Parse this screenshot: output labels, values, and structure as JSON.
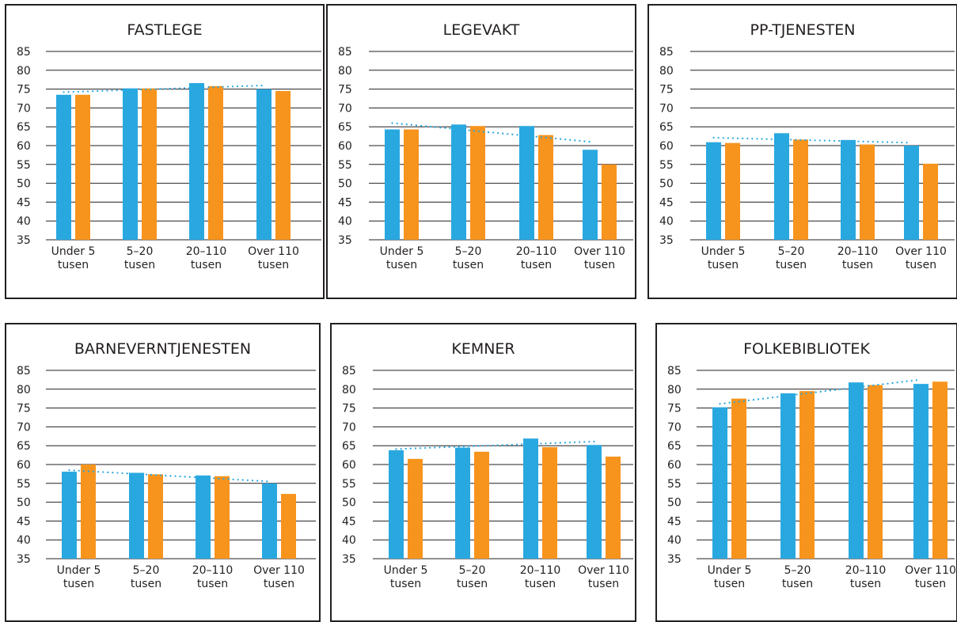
{
  "colors": {
    "series_blue": "#29a8e0",
    "series_orange": "#f7941d",
    "trend": "#29a8e0",
    "grid": "#231f20",
    "text": "#231f20"
  },
  "chart_data": [
    {
      "type": "bar",
      "title": "FASTLEGE",
      "categories": [
        "Under 5 tusen",
        "5–20 tusen",
        "20–110 tusen",
        "Over 110 tusen"
      ],
      "series": [
        {
          "color": "#29a8e0",
          "values": [
            73.5,
            75.2,
            76.6,
            75.0
          ]
        },
        {
          "color": "#f7941d",
          "values": [
            73.5,
            75.2,
            75.8,
            74.5
          ]
        }
      ],
      "trendline": {
        "style": "dotted",
        "color": "#29a8e0",
        "series_index": 0
      },
      "yticks": [
        35,
        40,
        45,
        50,
        55,
        60,
        65,
        70,
        75,
        80,
        85
      ],
      "ylim": [
        35,
        85
      ],
      "grid": true
    },
    {
      "type": "bar",
      "title": "LEGEVAKT",
      "categories": [
        "Under 5 tusen",
        "5–20 tusen",
        "20–110 tusen",
        "Over 110 tusen"
      ],
      "series": [
        {
          "color": "#29a8e0",
          "values": [
            64.3,
            65.6,
            65.2,
            58.9
          ]
        },
        {
          "color": "#f7941d",
          "values": [
            64.3,
            65.2,
            62.8,
            55.0
          ]
        }
      ],
      "trendline": {
        "style": "dotted",
        "color": "#29a8e0",
        "series_index": 0
      },
      "yticks": [
        35,
        40,
        45,
        50,
        55,
        60,
        65,
        70,
        75,
        80,
        85
      ],
      "ylim": [
        35,
        85
      ],
      "grid": true
    },
    {
      "type": "bar",
      "title": "PP-TJENESTEN",
      "categories": [
        "Under 5 tusen",
        "5–20 tusen",
        "20–110 tusen",
        "Over 110 tusen"
      ],
      "series": [
        {
          "color": "#29a8e0",
          "values": [
            60.9,
            63.3,
            61.5,
            60.0
          ]
        },
        {
          "color": "#f7941d",
          "values": [
            60.7,
            61.6,
            60.3,
            55.2
          ]
        }
      ],
      "trendline": {
        "style": "dotted",
        "color": "#29a8e0",
        "series_index": 0
      },
      "yticks": [
        35,
        40,
        45,
        50,
        55,
        60,
        65,
        70,
        75,
        80,
        85
      ],
      "ylim": [
        35,
        85
      ],
      "grid": true
    },
    {
      "type": "bar",
      "title": "BARNEVERNTJENESTEN",
      "categories": [
        "Under 5 tusen",
        "5–20 tusen",
        "20–110 tusen",
        "Over 110 tusen"
      ],
      "series": [
        {
          "color": "#29a8e0",
          "values": [
            58.1,
            57.8,
            57.1,
            55.0
          ]
        },
        {
          "color": "#f7941d",
          "values": [
            60.0,
            57.4,
            56.9,
            52.2
          ]
        }
      ],
      "trendline": {
        "style": "dotted",
        "color": "#29a8e0",
        "series_index": 0
      },
      "yticks": [
        35,
        40,
        45,
        50,
        55,
        60,
        65,
        70,
        75,
        80,
        85
      ],
      "ylim": [
        35,
        85
      ],
      "grid": true
    },
    {
      "type": "bar",
      "title": "KEMNER",
      "categories": [
        "Under 5 tusen",
        "5–20 tusen",
        "20–110 tusen",
        "Over 110 tusen"
      ],
      "series": [
        {
          "color": "#29a8e0",
          "values": [
            63.8,
            64.5,
            66.9,
            65.2
          ]
        },
        {
          "color": "#f7941d",
          "values": [
            61.5,
            63.4,
            64.6,
            62.1
          ]
        }
      ],
      "trendline": {
        "style": "dotted",
        "color": "#29a8e0",
        "series_index": 0
      },
      "yticks": [
        35,
        40,
        45,
        50,
        55,
        60,
        65,
        70,
        75,
        80,
        85
      ],
      "ylim": [
        35,
        85
      ],
      "grid": true
    },
    {
      "type": "bar",
      "title": "FOLKEBIBLIOTEK",
      "categories": [
        "Under 5 tusen",
        "5–20 tusen",
        "20–110 tusen",
        "Over 110 tusen"
      ],
      "series": [
        {
          "color": "#29a8e0",
          "values": [
            75.2,
            78.9,
            81.8,
            81.4
          ]
        },
        {
          "color": "#f7941d",
          "values": [
            77.5,
            79.5,
            81.1,
            82.0
          ]
        }
      ],
      "trendline": {
        "style": "dotted",
        "color": "#29a8e0",
        "series_index": 0
      },
      "yticks": [
        35,
        40,
        45,
        50,
        55,
        60,
        65,
        70,
        75,
        80,
        85
      ],
      "ylim": [
        35,
        85
      ],
      "grid": true
    }
  ]
}
